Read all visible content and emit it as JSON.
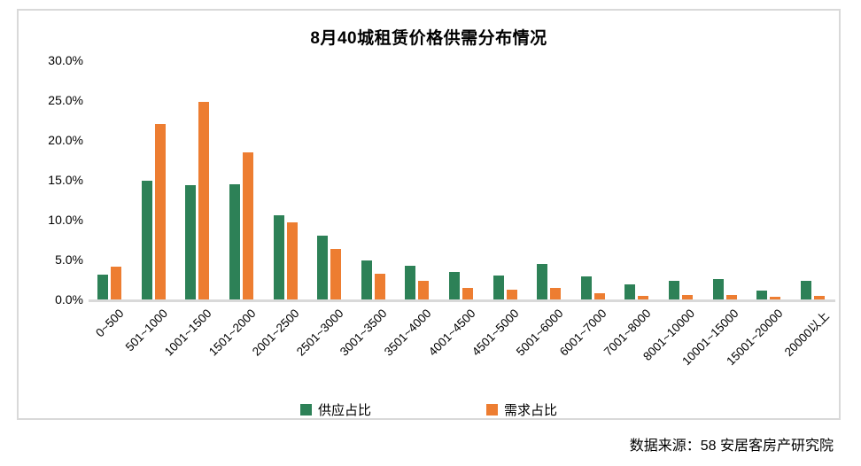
{
  "chart_data": {
    "type": "bar",
    "title": "8月40城租赁价格供需分布情况",
    "categories": [
      "0~500",
      "501~1000",
      "1001~1500",
      "1501~2000",
      "2001~2500",
      "2501~3000",
      "3001~3500",
      "3501~4000",
      "4001~4500",
      "4501~5000",
      "5001~6000",
      "6001~7000",
      "7001~8000",
      "8001~10000",
      "10001~15000",
      "15001~20000",
      "20000以上"
    ],
    "series": [
      {
        "name": "供应占比",
        "color": "#2D8157",
        "values": [
          3.1,
          14.9,
          14.3,
          14.5,
          10.6,
          8.0,
          4.9,
          4.2,
          3.4,
          3.0,
          4.4,
          2.9,
          1.9,
          2.3,
          2.6,
          1.1,
          2.3
        ]
      },
      {
        "name": "需求占比",
        "color": "#ED7D31",
        "values": [
          4.1,
          22.0,
          24.8,
          18.5,
          9.7,
          6.3,
          3.2,
          2.3,
          1.4,
          1.2,
          1.5,
          0.8,
          0.5,
          0.6,
          0.6,
          0.3,
          0.4
        ]
      }
    ],
    "ylim": [
      0,
      30
    ],
    "ytick_step": 5,
    "ytick_labels": [
      "0.0%",
      "5.0%",
      "10.0%",
      "15.0%",
      "20.0%",
      "25.0%",
      "30.0%"
    ],
    "grid": false,
    "legend_position": "bottom",
    "axis_color": "#D9D9D9"
  },
  "source_note": "数据来源：58 安居客房产研究院"
}
